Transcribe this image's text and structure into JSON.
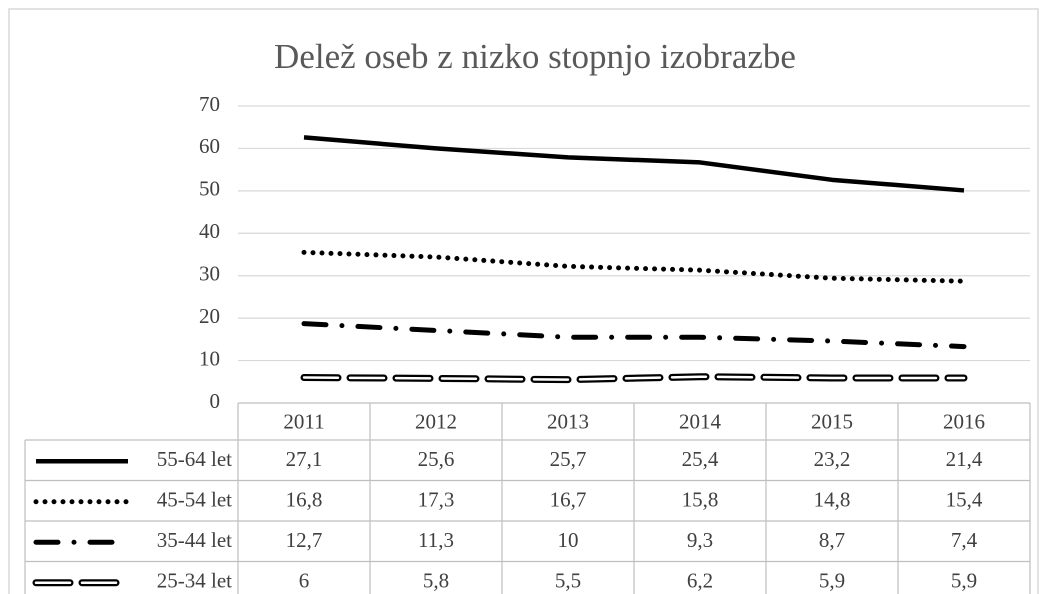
{
  "chart_data": {
    "type": "line",
    "stacked": true,
    "title": "Delež oseb z nizko stopnjo izobrazbe",
    "categories": [
      "2011",
      "2012",
      "2013",
      "2014",
      "2015",
      "2016"
    ],
    "series": [
      {
        "name": "55-64 let",
        "color": "#000000",
        "dash": "solid",
        "values": [
          27.1,
          25.6,
          25.7,
          25.4,
          23.2,
          21.4
        ],
        "value_labels": [
          "27,1",
          "25,6",
          "25,7",
          "25,4",
          "23,2",
          "21,4"
        ]
      },
      {
        "name": "45-54 let",
        "color": "#000000",
        "dash": "dot",
        "values": [
          16.8,
          17.3,
          16.7,
          15.8,
          14.8,
          15.4
        ],
        "value_labels": [
          "16,8",
          "17,3",
          "16,7",
          "15,8",
          "14,8",
          "15,4"
        ]
      },
      {
        "name": "35-44 let",
        "color": "#000000",
        "dash": "dash-dot",
        "values": [
          12.7,
          11.3,
          10,
          9.3,
          8.7,
          7.4
        ],
        "value_labels": [
          "12,7",
          "11,3",
          "10",
          "9,3",
          "8,7",
          "7,4"
        ]
      },
      {
        "name": "25-34 let",
        "color": "#000000",
        "dash": "double",
        "values": [
          6,
          5.8,
          5.5,
          6.2,
          5.9,
          5.9
        ],
        "value_labels": [
          "6",
          "5,8",
          "5,5",
          "6,2",
          "5,9",
          "5,9"
        ]
      }
    ],
    "ylim": [
      0,
      70
    ],
    "yticks": [
      0,
      10,
      20,
      30,
      40,
      50,
      60,
      70
    ],
    "grid": true,
    "data_table": true
  }
}
